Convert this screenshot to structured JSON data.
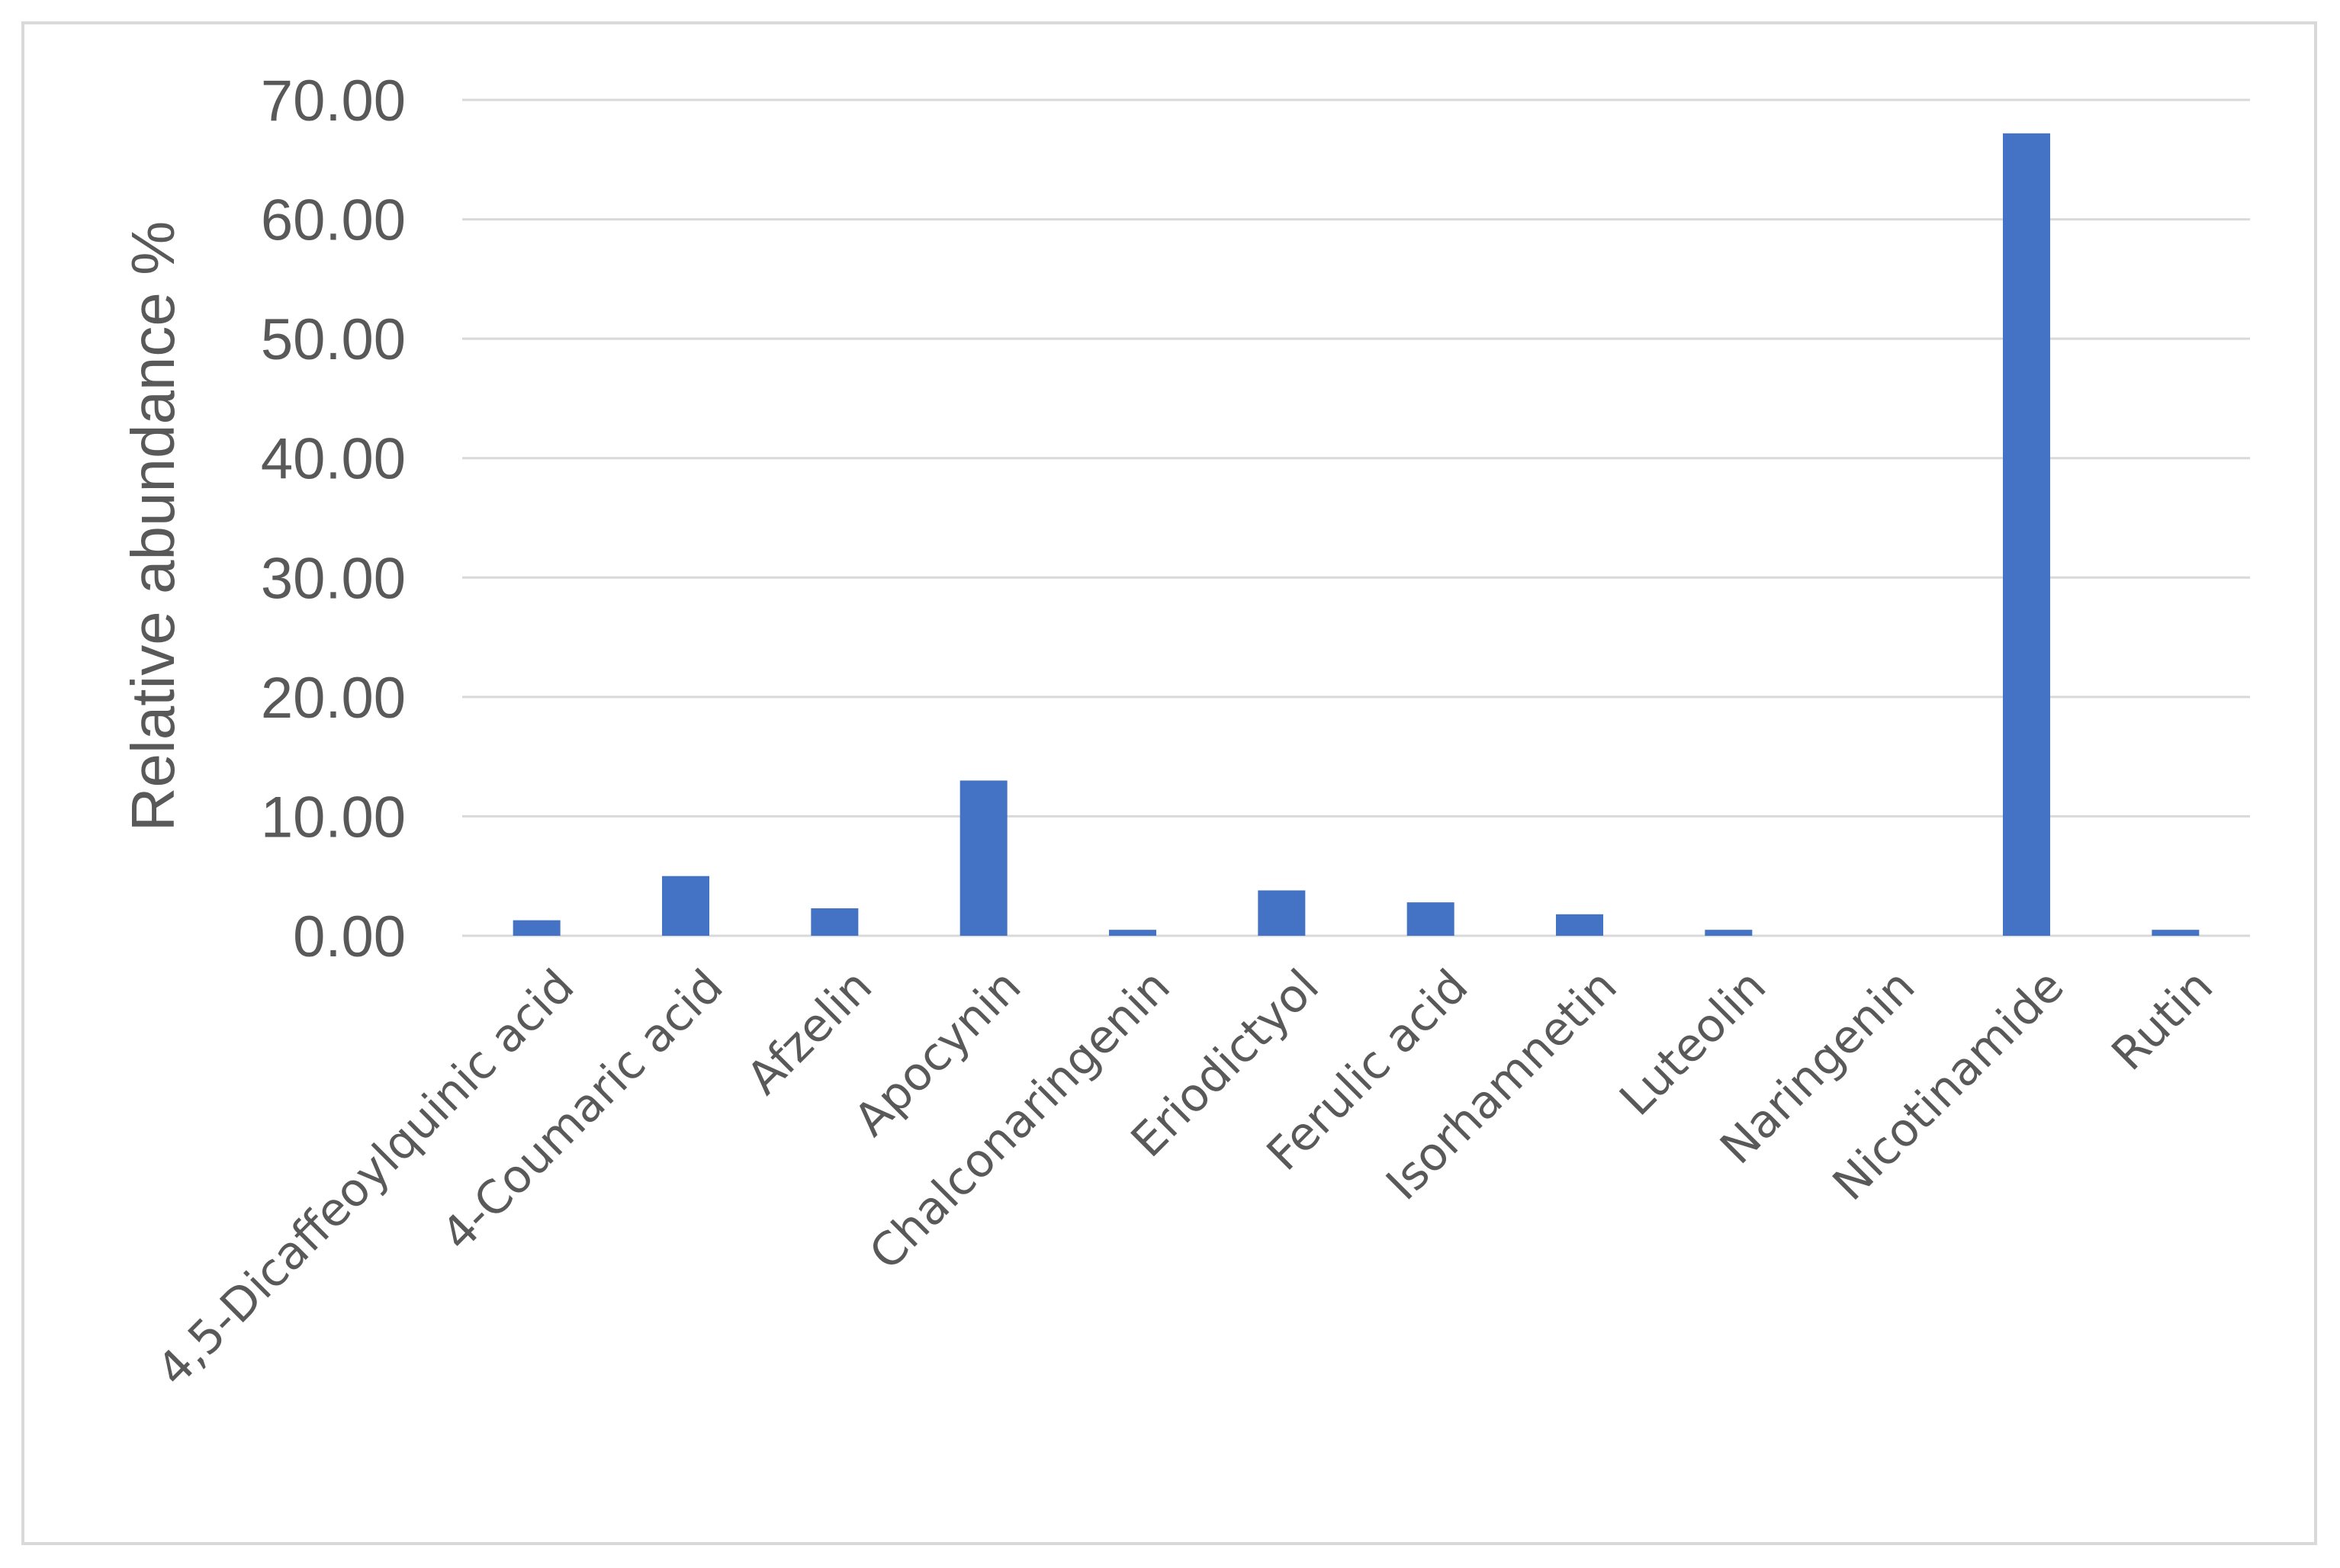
{
  "chart_data": {
    "type": "bar",
    "title": "",
    "xlabel": "",
    "ylabel": "Relative abundance  %",
    "ylim": [
      0,
      70
    ],
    "yticks": [
      "0.00",
      "10.00",
      "20.00",
      "30.00",
      "40.00",
      "50.00",
      "60.00",
      "70.00"
    ],
    "grid": true,
    "legend": "none",
    "bar_color": "#4472c4",
    "gridline_color": "#d9d9d9",
    "categories": [
      "4,5-Dicaffeoylquinic acid",
      "4-Coumaric acid",
      "Afzelin",
      "Apocynin",
      "Chalconaringenin",
      "Eriodictyol",
      "Ferulic acid",
      "Isorhamnetin",
      "Luteolin",
      "Naringenin",
      "Nicotinamide",
      "Rutin"
    ],
    "values": [
      1.3,
      5.0,
      2.3,
      13.0,
      0.5,
      3.8,
      2.8,
      1.8,
      0.5,
      0.0,
      67.2,
      0.5
    ]
  }
}
